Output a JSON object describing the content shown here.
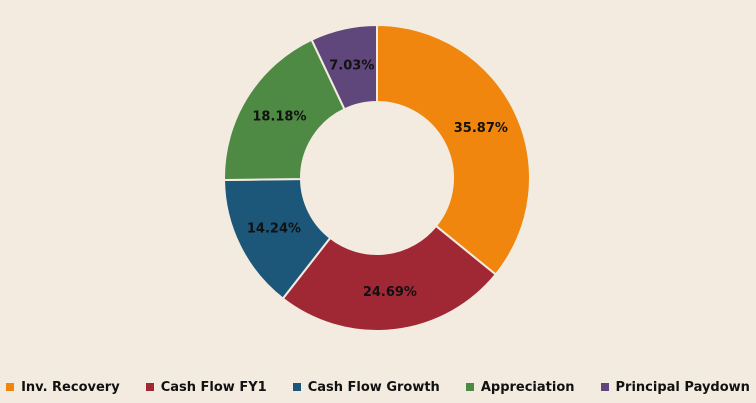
{
  "chart_data": {
    "type": "pie",
    "donut": true,
    "title": "",
    "legend_position": "bottom",
    "series": [
      {
        "label": "Inv. Recovery",
        "value": 35.87,
        "display": "35.87%",
        "color": "#f0860e"
      },
      {
        "label": "Cash Flow FY1",
        "value": 24.69,
        "display": "24.69%",
        "color": "#a02835"
      },
      {
        "label": "Cash Flow Growth",
        "value": 14.24,
        "display": "14.24%",
        "color": "#1c577a"
      },
      {
        "label": "Appreciation",
        "value": 18.18,
        "display": "18.18%",
        "color": "#4e8a44"
      },
      {
        "label": "Principal Paydown",
        "value": 7.03,
        "display": "7.03%",
        "color": "#5f477c"
      }
    ]
  }
}
